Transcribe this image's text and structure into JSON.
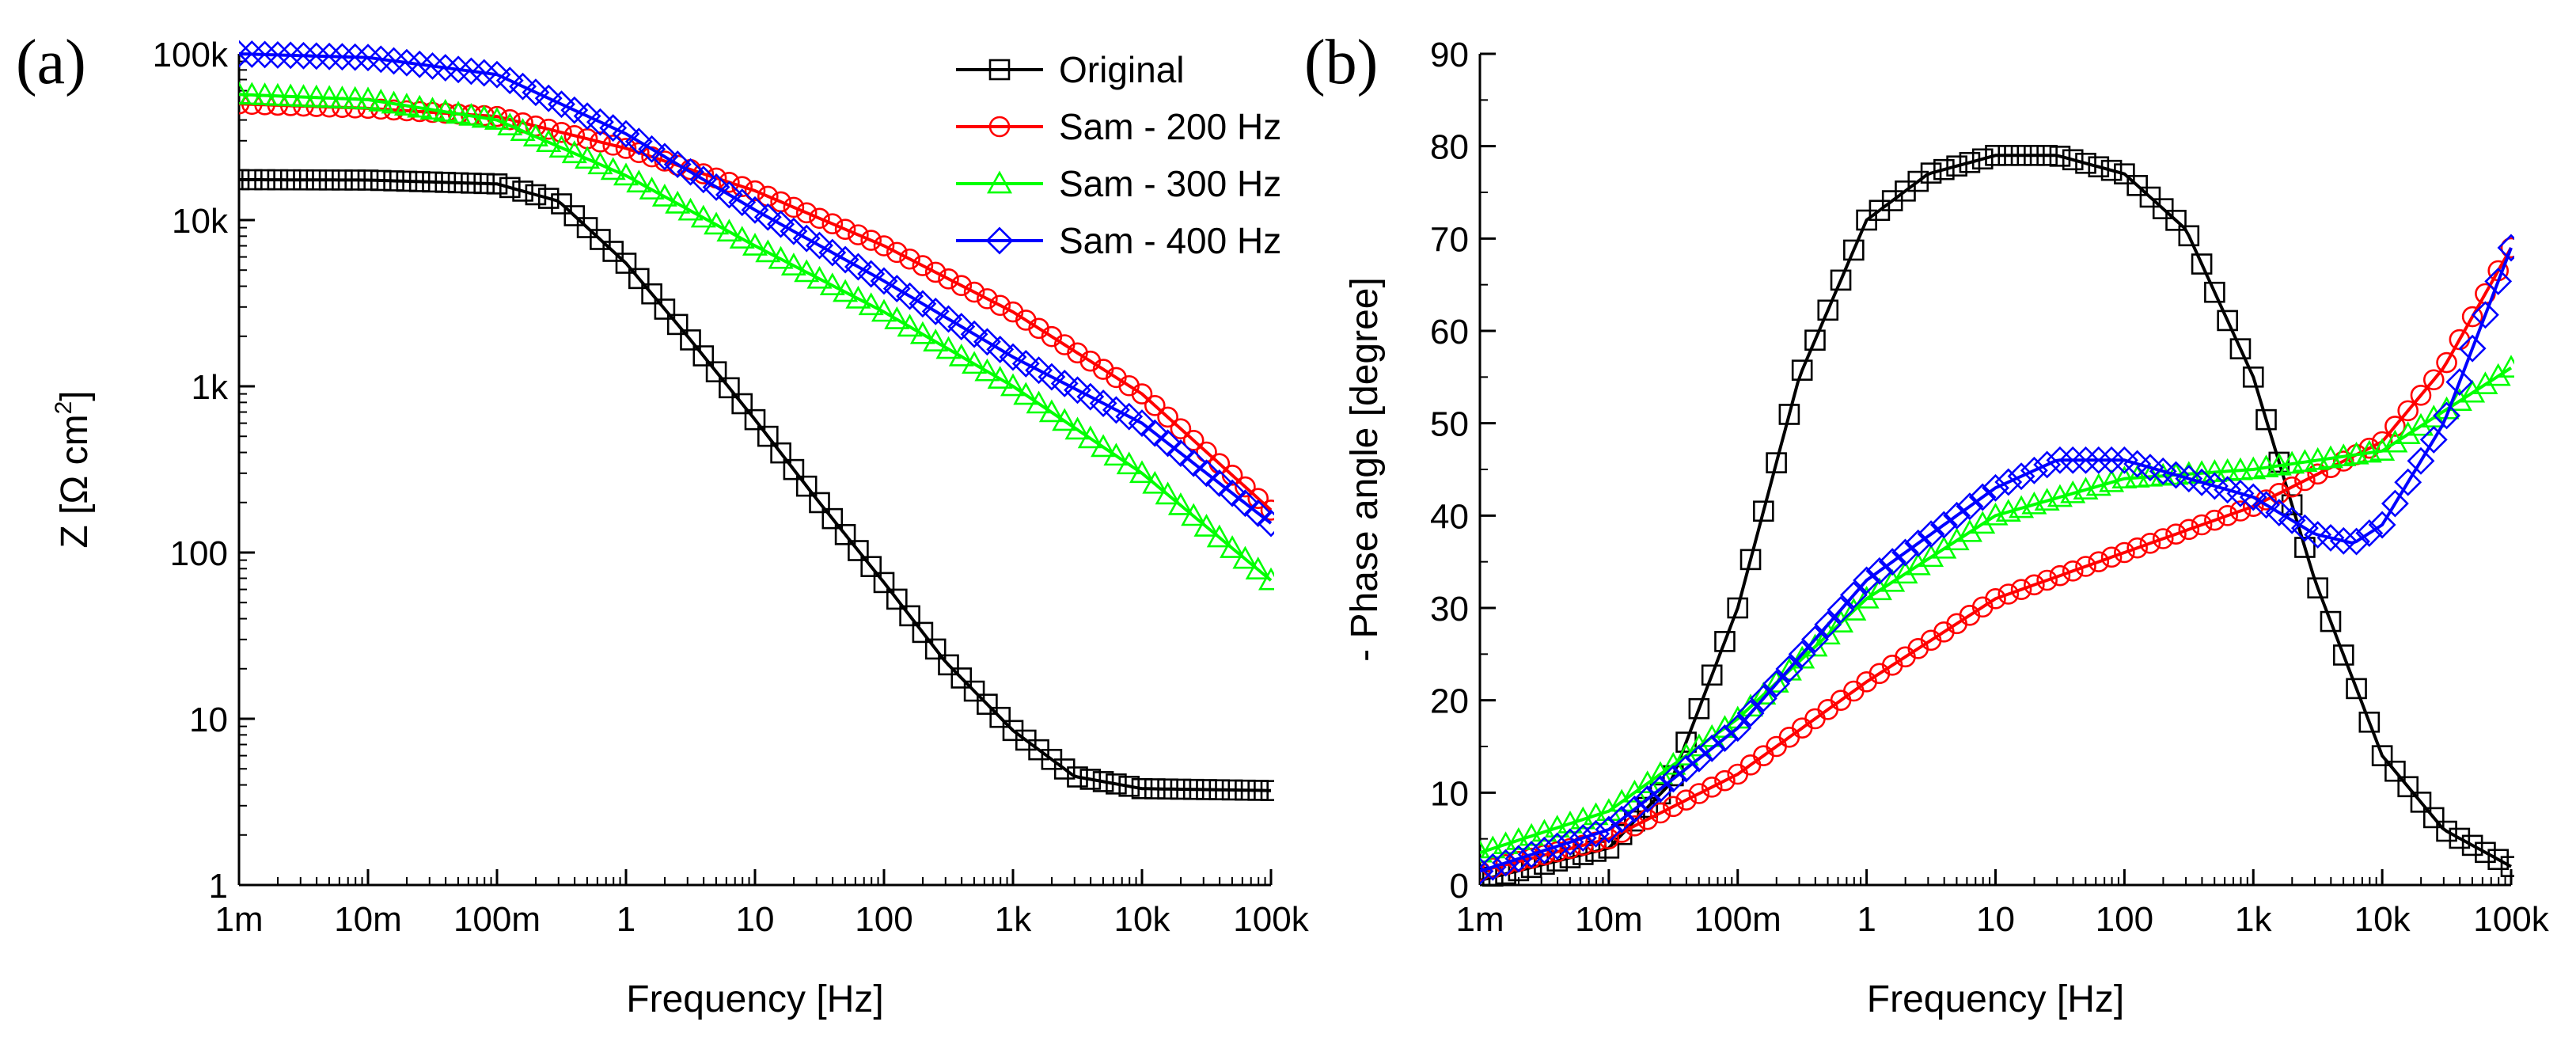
{
  "chart_data": [
    {
      "panel": "(a)",
      "type": "line",
      "xscale": "log",
      "yscale": "log",
      "xlabel": "Frequency [Hz]",
      "ylabel_parts": [
        "Z [Ω cm",
        "2",
        "]"
      ],
      "xlim": [
        0.001,
        100000
      ],
      "ylim": [
        1,
        100000
      ],
      "xticks": [
        0.001,
        0.01,
        0.1,
        1,
        10,
        100,
        1000,
        10000,
        100000
      ],
      "xtick_labels": [
        "1m",
        "10m",
        "100m",
        "1",
        "10",
        "100",
        "1k",
        "10k",
        "100k"
      ],
      "yticks": [
        1,
        10,
        100,
        1000,
        10000,
        100000
      ],
      "ytick_labels": [
        "1",
        "10",
        "100",
        "1k",
        "10k",
        "100k"
      ],
      "legend_position": "top-right",
      "series": [
        {
          "name": "Original",
          "color": "#000000",
          "marker": "square",
          "x": [
            0.001,
            0.01,
            0.1,
            0.3,
            1,
            3,
            10,
            30,
            100,
            300,
            1000,
            3000,
            10000,
            100000
          ],
          "y": [
            17500,
            17400,
            16500,
            13000,
            5500,
            2000,
            630,
            210,
            66,
            22,
            8.5,
            4.5,
            3.8,
            3.7
          ]
        },
        {
          "name": "Sam - 200 Hz",
          "color": "#ff0000",
          "marker": "circle",
          "x": [
            0.001,
            0.01,
            0.1,
            1,
            10,
            100,
            1000,
            10000,
            100000
          ],
          "y": [
            50000,
            47000,
            42000,
            27000,
            15000,
            7000,
            2800,
            900,
            180
          ]
        },
        {
          "name": "Sam - 300 Hz",
          "color": "#00ff00",
          "marker": "triangle",
          "x": [
            0.001,
            0.01,
            0.1,
            1,
            10,
            100,
            1000,
            10000,
            100000
          ],
          "y": [
            57000,
            53000,
            40000,
            18500,
            7000,
            2800,
            1000,
            300,
            68
          ]
        },
        {
          "name": "Sam - 400 Hz",
          "color": "#0000ff",
          "marker": "diamond",
          "x": [
            0.001,
            0.01,
            0.1,
            1,
            10,
            100,
            1000,
            10000,
            100000
          ],
          "y": [
            100000,
            95000,
            75000,
            33000,
            11500,
            4300,
            1500,
            600,
            150
          ]
        }
      ]
    },
    {
      "panel": "(b)",
      "type": "line",
      "xscale": "log",
      "yscale": "linear",
      "xlabel": "Frequency [Hz]",
      "ylabel": "- Phase angle [degree]",
      "xlim": [
        0.001,
        100000
      ],
      "ylim": [
        0,
        90
      ],
      "xticks": [
        0.001,
        0.01,
        0.1,
        1,
        10,
        100,
        1000,
        10000,
        100000
      ],
      "xtick_labels": [
        "1m",
        "10m",
        "100m",
        "1",
        "10",
        "100",
        "1k",
        "10k",
        "100k"
      ],
      "yticks": [
        0,
        10,
        20,
        30,
        40,
        50,
        60,
        70,
        80,
        90
      ],
      "ytick_labels": [
        "0",
        "10",
        "20",
        "30",
        "40",
        "50",
        "60",
        "70",
        "80",
        "90"
      ],
      "series": [
        {
          "name": "Original",
          "color": "#000000",
          "marker": "square",
          "x": [
            0.001,
            0.01,
            0.03,
            0.1,
            0.3,
            1,
            3,
            10,
            30,
            100,
            300,
            1000,
            3000,
            10000,
            30000,
            100000
          ],
          "y": [
            0.5,
            4,
            11,
            30,
            55,
            72,
            77,
            79,
            79,
            77,
            71,
            55,
            33,
            14,
            6,
            2
          ]
        },
        {
          "name": "Sam - 200 Hz",
          "color": "#ff0000",
          "marker": "circle",
          "x": [
            0.001,
            0.01,
            0.1,
            1,
            10,
            100,
            1000,
            10000,
            30000,
            100000
          ],
          "y": [
            1.5,
            5,
            12,
            22,
            31,
            36,
            41,
            48,
            56,
            69
          ]
        },
        {
          "name": "Sam - 300 Hz",
          "color": "#00ff00",
          "marker": "triangle",
          "x": [
            0.001,
            0.01,
            0.1,
            1,
            10,
            100,
            1000,
            10000,
            100000
          ],
          "y": [
            3.5,
            8,
            18,
            31,
            40,
            44,
            45,
            47,
            56
          ]
        },
        {
          "name": "Sam - 400 Hz",
          "color": "#0000ff",
          "marker": "diamond",
          "x": [
            0.001,
            0.01,
            0.1,
            1,
            10,
            30,
            100,
            1000,
            3000,
            6000,
            10000,
            30000,
            100000
          ],
          "y": [
            1.5,
            6,
            17,
            33,
            43,
            46,
            46,
            42,
            38,
            37,
            39,
            50,
            69
          ]
        }
      ]
    }
  ]
}
